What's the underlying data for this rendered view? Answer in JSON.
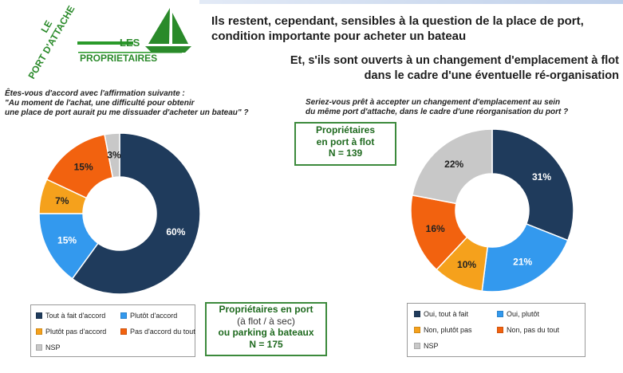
{
  "logo": {
    "line1": "LE",
    "line2": "PORT D'ATTACHE",
    "line3": "LES",
    "line4": "PROPRIETAIRES",
    "icon": "sailboat-icon"
  },
  "headline": "Ils restent, cependant, sensibles à la question de la place de port, condition importante pour acheter un bateau",
  "subhead": "Et, s'ils sont ouverts à un changement d'emplacement à flot dans le cadre d'une éventuelle ré-organisation",
  "left_question": {
    "line1": "Êtes-vous d'accord avec l'affirmation suivante :",
    "line2": "\"Au moment de l'achat, une difficulté pour obtenir",
    "line3": "une place de port aurait pu me dissuader d'acheter un bateau\" ?"
  },
  "right_question": {
    "line1": "Seriez-vous prêt à accepter un changement d'emplacement au sein",
    "line2": "du même port d'attache, dans le cadre d'une réorganisation du port ?"
  },
  "right_box": {
    "line1": "Propriétaires",
    "line2": "en port à flot",
    "line3": "N = 139"
  },
  "bottom_box": {
    "line1": "Propriétaires en port",
    "line2": "(à flot / à sec)",
    "line3": "ou parking à bateaux",
    "line4": "N = 175"
  },
  "chart_data": [
    {
      "type": "pie",
      "donut": true,
      "categories": [
        "Tout à fait d'accord",
        "Plutôt d'accord",
        "Plutôt pas d'accord",
        "Pas d'accord du tout",
        "NSP"
      ],
      "values": [
        60,
        15,
        7,
        15,
        3
      ],
      "labels": [
        "60%",
        "15%",
        "7%",
        "15%",
        "3%"
      ],
      "colors": [
        "#1f3b5c",
        "#3399ee",
        "#f5a11c",
        "#f2620f",
        "#c8c8c8"
      ],
      "legend": "bottom-left"
    },
    {
      "type": "pie",
      "donut": true,
      "categories": [
        "Oui, tout à fait",
        "Oui, plutôt",
        "Non, plutôt pas",
        "Non, pas du tout",
        "NSP"
      ],
      "values": [
        31,
        21,
        10,
        16,
        22
      ],
      "labels": [
        "31%",
        "21%",
        "10%",
        "16%",
        "22%"
      ],
      "colors": [
        "#1f3b5c",
        "#3399ee",
        "#f5a11c",
        "#f2620f",
        "#c8c8c8"
      ],
      "legend": "bottom-right"
    }
  ]
}
